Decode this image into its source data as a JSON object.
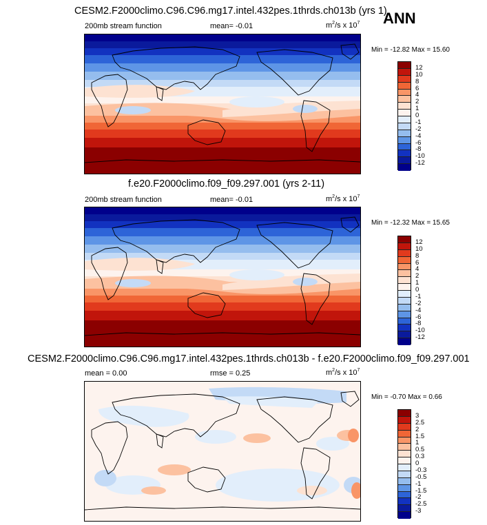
{
  "season": "ANN",
  "panels": [
    {
      "id": "test",
      "title": "CESM2.F2000climo.C96.C96.mg17.intel.432pes.1thrds.ch013b (yrs 1)",
      "left_label": "200mb stream function",
      "center_label": "mean=  -0.01",
      "units": "m",
      "units_tail": "/s x 10",
      "units_exp1": "2",
      "units_exp2": "7",
      "minmax": "Min = -12.82 Max =  15.60"
    },
    {
      "id": "reference",
      "title": "f.e20.F2000climo.f09_f09.297.001 (yrs 2-11)",
      "left_label": "200mb stream function",
      "center_label": "mean=  -0.01",
      "units": "m",
      "units_tail": "/s x 10",
      "units_exp1": "2",
      "units_exp2": "7",
      "minmax": "Min = -12.32 Max =  15.65"
    },
    {
      "id": "difference",
      "title": "CESM2.F2000climo.C96.C96.mg17.intel.432pes.1thrds.ch013b - f.e20.F2000climo.f09_f09.297.001",
      "left_label": "mean =  0.00",
      "center_label": "rmse =  0.25",
      "units": "m",
      "units_tail": "/s x 10",
      "units_exp1": "2",
      "units_exp2": "7",
      "minmax": "Min = -0.70 Max =  0.66"
    }
  ],
  "chart_data": [
    {
      "type": "heatmap",
      "title": "CESM2.F2000climo.C96.C96.mg17.intel.432pes.1thrds.ch013b (yrs 1)",
      "variable": "200mb stream function",
      "mean": -0.01,
      "min": -12.82,
      "max": 15.6,
      "colorbar_levels": [
        "12",
        "10",
        "8",
        "6",
        "4",
        "2",
        "1",
        "0",
        "-1",
        "-2",
        "-4",
        "-6",
        "-8",
        "-10",
        "-12"
      ],
      "colorbar_colors": [
        "#8b0000",
        "#c1150b",
        "#e13a1d",
        "#f06636",
        "#f99567",
        "#fcc1a0",
        "#fde2d2",
        "#fdf3ee",
        "#e2eefb",
        "#c3daf6",
        "#95bdee",
        "#5e95e6",
        "#2d64d8",
        "#1232c0",
        "#0a1a9c",
        "#00008b"
      ]
    },
    {
      "type": "heatmap",
      "title": "f.e20.F2000climo.f09_f09.297.001 (yrs 2-11)",
      "variable": "200mb stream function",
      "mean": -0.01,
      "min": -12.32,
      "max": 15.65,
      "colorbar_levels": [
        "12",
        "10",
        "8",
        "6",
        "4",
        "2",
        "1",
        "0",
        "-1",
        "-2",
        "-4",
        "-6",
        "-8",
        "-10",
        "-12"
      ],
      "colorbar_colors": [
        "#8b0000",
        "#c1150b",
        "#e13a1d",
        "#f06636",
        "#f99567",
        "#fcc1a0",
        "#fde2d2",
        "#fdf3ee",
        "#e2eefb",
        "#c3daf6",
        "#95bdee",
        "#5e95e6",
        "#2d64d8",
        "#1232c0",
        "#0a1a9c",
        "#00008b"
      ]
    },
    {
      "type": "heatmap",
      "title": "CESM2.F2000climo.C96.C96.mg17.intel.432pes.1thrds.ch013b - f.e20.F2000climo.f09_f09.297.001",
      "mean": 0.0,
      "rmse": 0.25,
      "min": -0.7,
      "max": 0.66,
      "colorbar_levels": [
        "3",
        "2.5",
        "2",
        "1.5",
        "1",
        "0.5",
        "0.3",
        "0",
        "-0.3",
        "-0.5",
        "-1",
        "-1.5",
        "-2",
        "-2.5",
        "-3"
      ],
      "colorbar_colors": [
        "#8b0000",
        "#c1150b",
        "#e13a1d",
        "#f06636",
        "#f99567",
        "#fcc1a0",
        "#fde2d2",
        "#fdf3ee",
        "#e2eefb",
        "#c3daf6",
        "#95bdee",
        "#5e95e6",
        "#2d64d8",
        "#1232c0",
        "#0a1a9c",
        "#00008b"
      ]
    }
  ]
}
